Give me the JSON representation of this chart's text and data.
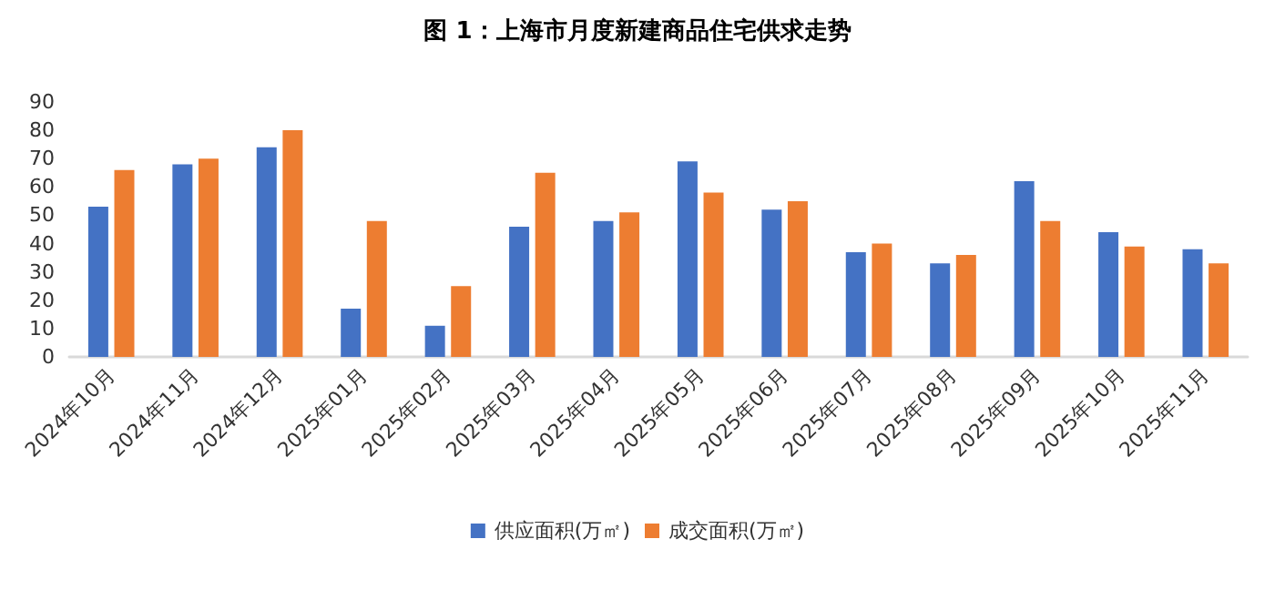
{
  "chart_data": {
    "type": "bar",
    "title": "图 1：上海市月度新建商品住宅供求走势",
    "categories": [
      "2024年10月",
      "2024年11月",
      "2024年12月",
      "2025年01月",
      "2025年02月",
      "2025年03月",
      "2025年04月",
      "2025年05月",
      "2025年06月",
      "2025年07月",
      "2025年08月",
      "2025年09月",
      "2025年10月",
      "2025年11月"
    ],
    "series": [
      {
        "name": "供应面积(万㎡)",
        "color": "#4472c4",
        "values": [
          53,
          68,
          74,
          17,
          11,
          46,
          48,
          69,
          52,
          37,
          33,
          62,
          44,
          38
        ]
      },
      {
        "name": "成交面积(万㎡)",
        "color": "#ed7d31",
        "values": [
          66,
          70,
          80,
          48,
          25,
          65,
          51,
          58,
          55,
          40,
          36,
          48,
          39,
          33
        ]
      }
    ],
    "ylim": [
      0,
      90
    ],
    "yticks": [
      0,
      10,
      20,
      30,
      40,
      50,
      60,
      70,
      80,
      90
    ],
    "grid": false,
    "legend": "bottom"
  }
}
